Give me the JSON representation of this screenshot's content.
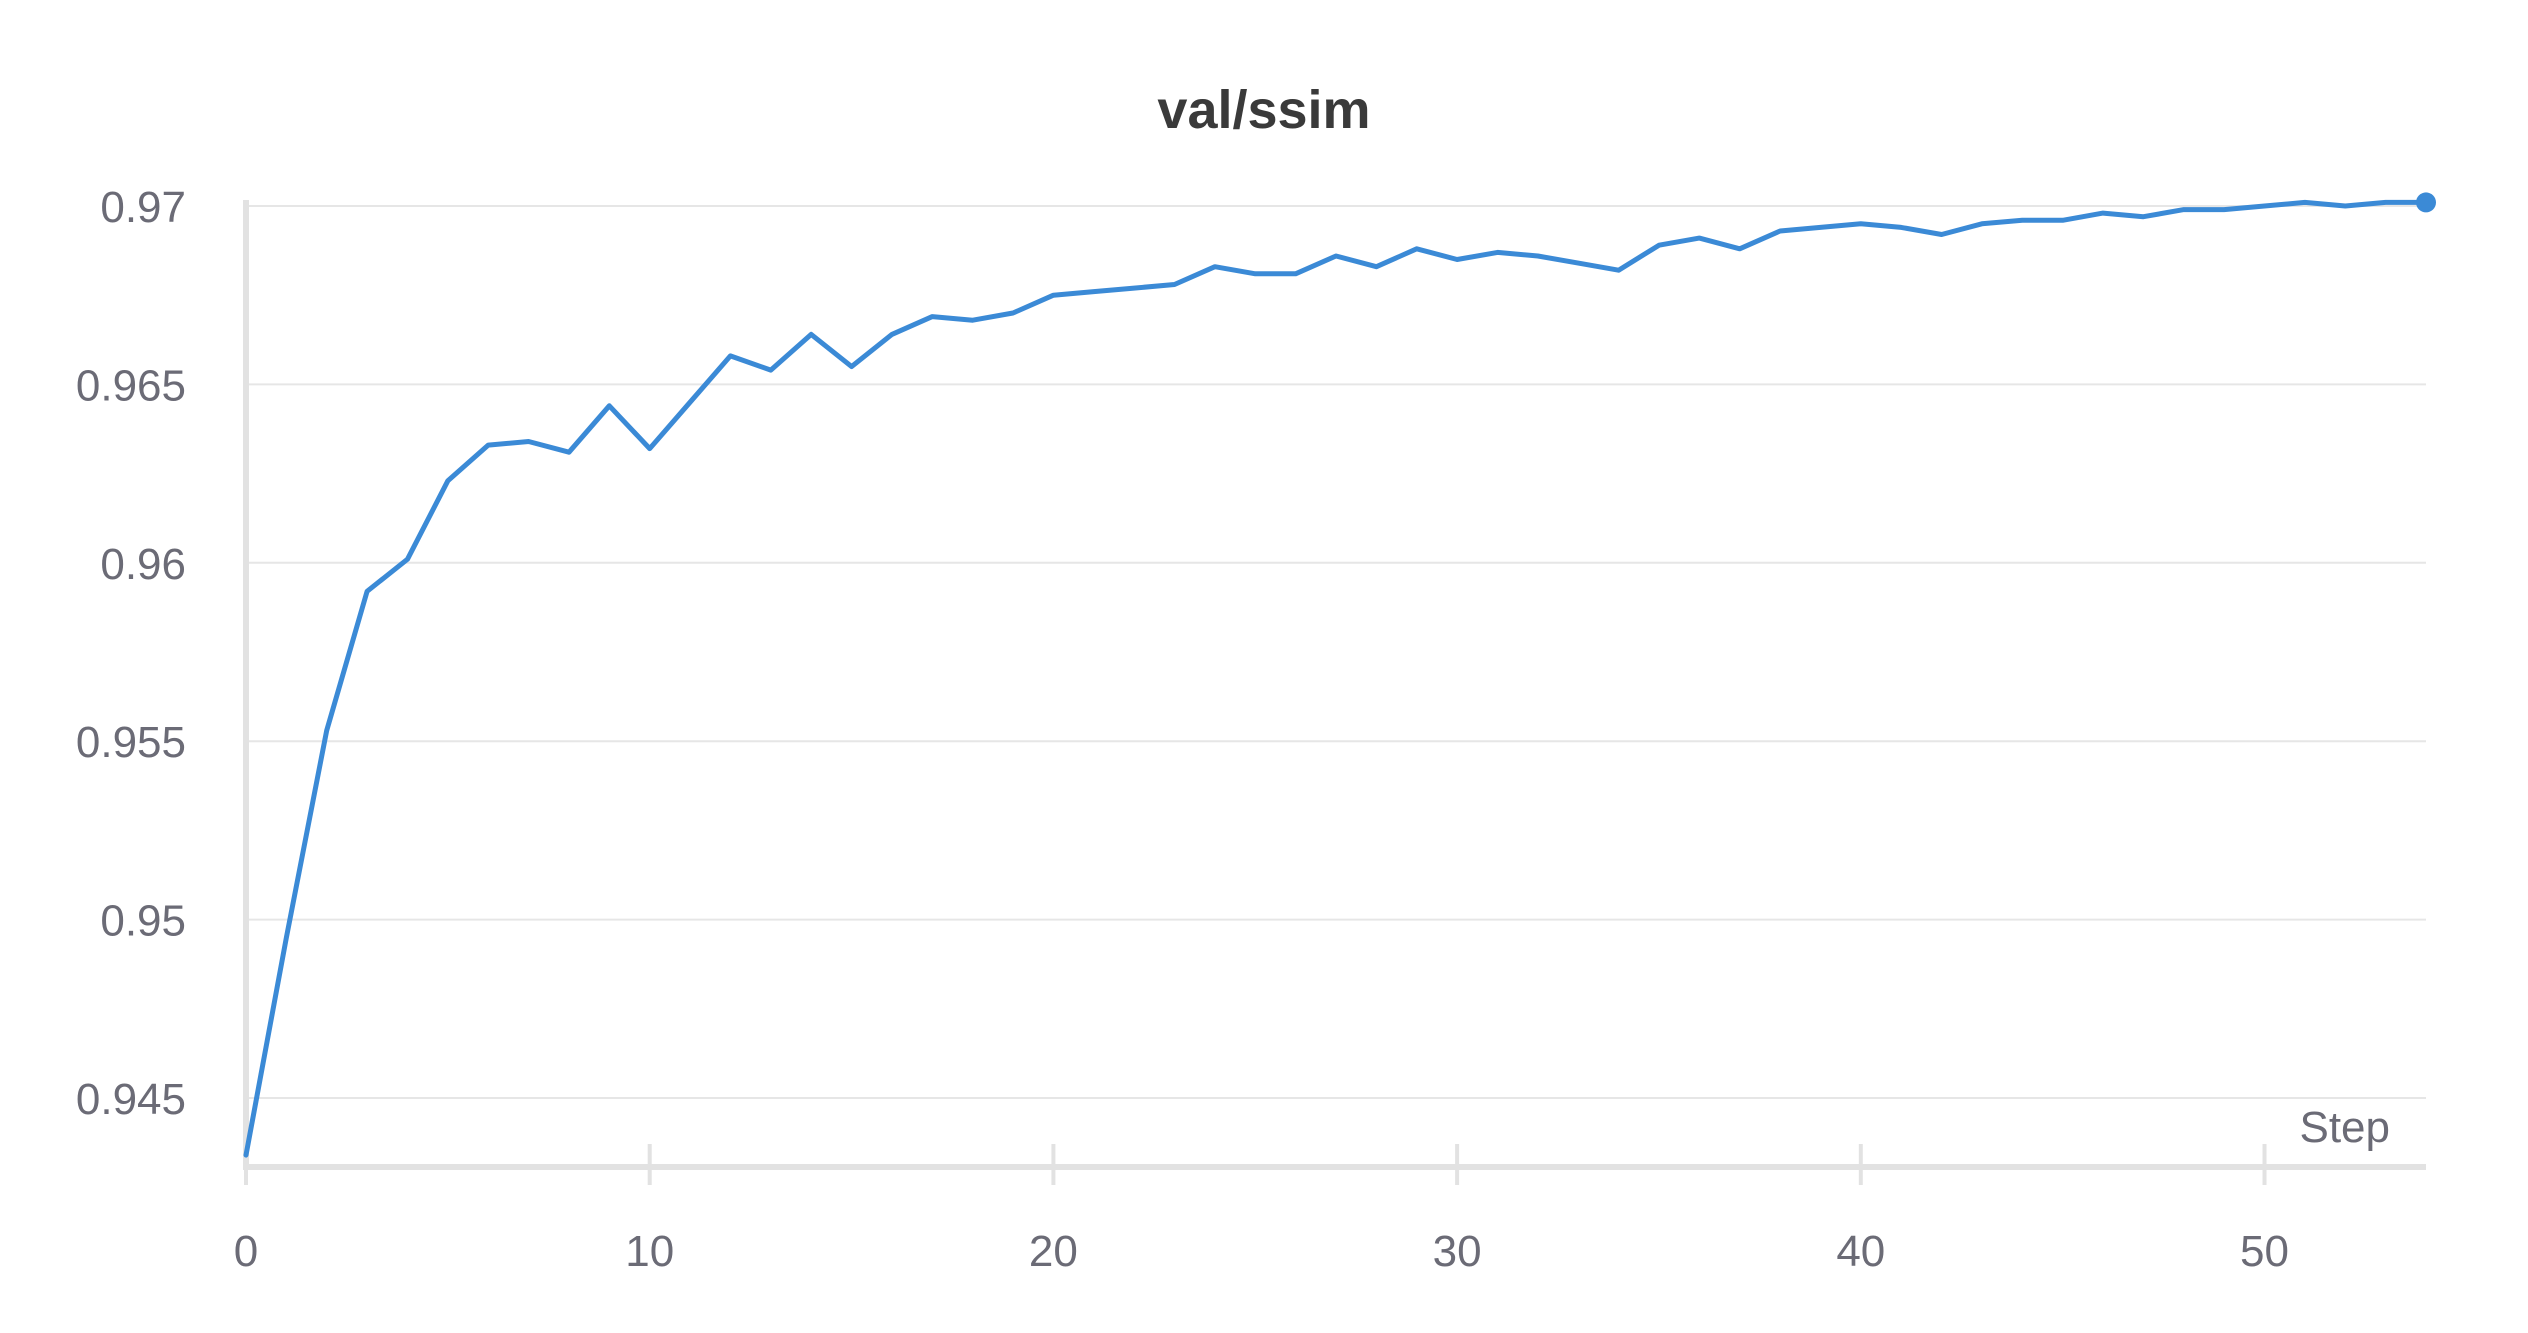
{
  "chart_data": {
    "type": "line",
    "title": "val/ssim",
    "xlabel": "Step",
    "ylabel": "",
    "xlim": [
      0,
      54
    ],
    "ylim": [
      0.9433,
      0.9707
    ],
    "x_ticks": [
      0,
      10,
      20,
      30,
      40,
      50
    ],
    "x_tick_labels": [
      "0",
      "10",
      "20",
      "30",
      "40",
      "50"
    ],
    "y_ticks": [
      0.945,
      0.95,
      0.955,
      0.96,
      0.965,
      0.97
    ],
    "y_tick_labels": [
      "0.945",
      "0.95",
      "0.955",
      "0.96",
      "0.965",
      "0.97"
    ],
    "grid": true,
    "legend": "none",
    "series": [
      {
        "color": "#3b8ad6",
        "x": [
          0,
          1,
          2,
          3,
          4,
          5,
          6,
          7,
          8,
          9,
          10,
          11,
          12,
          13,
          14,
          15,
          16,
          17,
          18,
          19,
          20,
          21,
          22,
          23,
          24,
          25,
          26,
          27,
          28,
          29,
          30,
          31,
          32,
          33,
          34,
          35,
          36,
          37,
          38,
          39,
          40,
          41,
          42,
          43,
          44,
          45,
          46,
          47,
          48,
          49,
          50,
          51,
          52,
          53,
          54
        ],
        "values": [
          0.9434,
          0.9495,
          0.9553,
          0.9592,
          0.9601,
          0.9623,
          0.9633,
          0.9634,
          0.9631,
          0.9644,
          0.9632,
          0.9645,
          0.9658,
          0.9654,
          0.9664,
          0.9655,
          0.9664,
          0.9669,
          0.9668,
          0.967,
          0.9675,
          0.9676,
          0.9677,
          0.9678,
          0.9683,
          0.9681,
          0.9681,
          0.9686,
          0.9683,
          0.9688,
          0.9685,
          0.9687,
          0.9686,
          0.9684,
          0.9682,
          0.9689,
          0.9691,
          0.9688,
          0.9693,
          0.9694,
          0.9695,
          0.9694,
          0.9692,
          0.9695,
          0.9696,
          0.9696,
          0.9698,
          0.9697,
          0.9699,
          0.9699,
          0.97,
          0.9701,
          0.97,
          0.9701,
          0.9701
        ]
      }
    ]
  }
}
